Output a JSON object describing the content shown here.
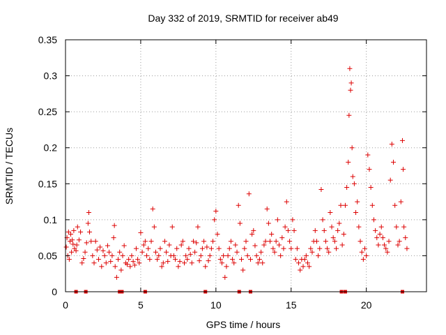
{
  "chart_data": {
    "type": "scatter",
    "title": "Day 332 of 2019, SRMTID for receiver ab49",
    "xlabel": "GPS time / hours",
    "ylabel": "SRMTID / TECUs",
    "xlim": [
      0,
      24
    ],
    "ylim": [
      0,
      0.35
    ],
    "xticks": [
      0,
      5,
      10,
      15,
      20
    ],
    "yticks": [
      0,
      0.05,
      0.1,
      0.15,
      0.2,
      0.25,
      0.3,
      0.35
    ],
    "ytick_labels": [
      "0",
      "0.05",
      "0.1",
      "0.15",
      "0.2",
      "0.25",
      "0.3",
      "0.35"
    ],
    "grid": true,
    "marker": "plus",
    "marker_color": "#dd0000",
    "series": [
      {
        "name": "SRMTID",
        "points": [
          [
            0.05,
            0.062
          ],
          [
            0.1,
            0.075
          ],
          [
            0.15,
            0.05
          ],
          [
            0.2,
            0.083
          ],
          [
            0.25,
            0.045
          ],
          [
            0.3,
            0.07
          ],
          [
            0.35,
            0.08
          ],
          [
            0.4,
            0.055
          ],
          [
            0.45,
            0.072
          ],
          [
            0.5,
            0.066
          ],
          [
            0.55,
            0.085
          ],
          [
            0.6,
            0.06
          ],
          [
            0.7,
            0.057
          ],
          [
            0.75,
            0.065
          ],
          [
            0.8,
            0.09
          ],
          [
            0.9,
            0.072
          ],
          [
            1.0,
            0.083
          ],
          [
            1.1,
            0.04
          ],
          [
            1.2,
            0.046
          ],
          [
            1.3,
            0.055
          ],
          [
            1.4,
            0.068
          ],
          [
            1.5,
            0.095
          ],
          [
            1.55,
            0.11
          ],
          [
            1.6,
            0.083
          ],
          [
            1.7,
            0.07
          ],
          [
            1.8,
            0.05
          ],
          [
            1.9,
            0.04
          ],
          [
            2.0,
            0.07
          ],
          [
            2.1,
            0.058
          ],
          [
            2.2,
            0.045
          ],
          [
            2.3,
            0.062
          ],
          [
            2.4,
            0.035
          ],
          [
            2.5,
            0.057
          ],
          [
            2.6,
            0.05
          ],
          [
            2.7,
            0.04
          ],
          [
            2.8,
            0.064
          ],
          [
            2.9,
            0.055
          ],
          [
            3.0,
            0.042
          ],
          [
            3.1,
            0.05
          ],
          [
            3.2,
            0.075
          ],
          [
            3.25,
            0.092
          ],
          [
            3.3,
            0.035
          ],
          [
            3.4,
            0.02
          ],
          [
            3.5,
            0.045
          ],
          [
            3.6,
            0.055
          ],
          [
            3.7,
            0.03
          ],
          [
            3.8,
            0.05
          ],
          [
            3.9,
            0.064
          ],
          [
            4.0,
            0.04
          ],
          [
            4.1,
            0.038
          ],
          [
            4.2,
            0.045
          ],
          [
            4.3,
            0.035
          ],
          [
            4.4,
            0.05
          ],
          [
            4.5,
            0.042
          ],
          [
            4.6,
            0.037
          ],
          [
            4.7,
            0.06
          ],
          [
            4.8,
            0.045
          ],
          [
            4.9,
            0.04
          ],
          [
            5.0,
            0.082
          ],
          [
            5.1,
            0.055
          ],
          [
            5.2,
            0.065
          ],
          [
            5.3,
            0.07
          ],
          [
            5.4,
            0.05
          ],
          [
            5.5,
            0.06
          ],
          [
            5.6,
            0.045
          ],
          [
            5.7,
            0.07
          ],
          [
            5.8,
            0.115
          ],
          [
            5.9,
            0.09
          ],
          [
            6.0,
            0.055
          ],
          [
            6.1,
            0.045
          ],
          [
            6.2,
            0.05
          ],
          [
            6.3,
            0.06
          ],
          [
            6.4,
            0.035
          ],
          [
            6.5,
            0.04
          ],
          [
            6.6,
            0.07
          ],
          [
            6.7,
            0.055
          ],
          [
            6.8,
            0.042
          ],
          [
            6.9,
            0.065
          ],
          [
            7.0,
            0.05
          ],
          [
            7.1,
            0.09
          ],
          [
            7.2,
            0.05
          ],
          [
            7.3,
            0.045
          ],
          [
            7.4,
            0.06
          ],
          [
            7.5,
            0.035
          ],
          [
            7.6,
            0.042
          ],
          [
            7.7,
            0.065
          ],
          [
            7.8,
            0.07
          ],
          [
            7.9,
            0.04
          ],
          [
            8.0,
            0.05
          ],
          [
            8.1,
            0.045
          ],
          [
            8.2,
            0.06
          ],
          [
            8.3,
            0.052
          ],
          [
            8.4,
            0.04
          ],
          [
            8.5,
            0.07
          ],
          [
            8.6,
            0.055
          ],
          [
            8.7,
            0.068
          ],
          [
            8.8,
            0.09
          ],
          [
            8.9,
            0.043
          ],
          [
            9.0,
            0.05
          ],
          [
            9.1,
            0.06
          ],
          [
            9.2,
            0.07
          ],
          [
            9.3,
            0.035
          ],
          [
            9.4,
            0.062
          ],
          [
            9.5,
            0.043
          ],
          [
            9.6,
            0.05
          ],
          [
            9.7,
            0.06
          ],
          [
            9.8,
            0.07
          ],
          [
            9.9,
            0.1
          ],
          [
            10.0,
            0.112
          ],
          [
            10.1,
            0.08
          ],
          [
            10.2,
            0.06
          ],
          [
            10.3,
            0.045
          ],
          [
            10.4,
            0.04
          ],
          [
            10.5,
            0.05
          ],
          [
            10.6,
            0.02
          ],
          [
            10.7,
            0.035
          ],
          [
            10.8,
            0.05
          ],
          [
            10.9,
            0.06
          ],
          [
            11.0,
            0.07
          ],
          [
            11.1,
            0.045
          ],
          [
            11.2,
            0.04
          ],
          [
            11.3,
            0.065
          ],
          [
            11.4,
            0.055
          ],
          [
            11.5,
            0.12
          ],
          [
            11.6,
            0.095
          ],
          [
            11.7,
            0.045
          ],
          [
            11.8,
            0.03
          ],
          [
            11.9,
            0.06
          ],
          [
            12.0,
            0.07
          ],
          [
            12.1,
            0.05
          ],
          [
            12.2,
            0.136
          ],
          [
            12.3,
            0.045
          ],
          [
            12.4,
            0.08
          ],
          [
            12.5,
            0.085
          ],
          [
            12.6,
            0.064
          ],
          [
            12.7,
            0.05
          ],
          [
            12.8,
            0.04
          ],
          [
            12.9,
            0.045
          ],
          [
            13.0,
            0.055
          ],
          [
            13.1,
            0.04
          ],
          [
            13.2,
            0.065
          ],
          [
            13.3,
            0.07
          ],
          [
            13.4,
            0.115
          ],
          [
            13.5,
            0.095
          ],
          [
            13.6,
            0.07
          ],
          [
            13.7,
            0.08
          ],
          [
            13.8,
            0.06
          ],
          [
            13.9,
            0.055
          ],
          [
            14.0,
            0.07
          ],
          [
            14.1,
            0.1
          ],
          [
            14.2,
            0.065
          ],
          [
            14.3,
            0.05
          ],
          [
            14.4,
            0.075
          ],
          [
            14.5,
            0.06
          ],
          [
            14.6,
            0.09
          ],
          [
            14.7,
            0.125
          ],
          [
            14.8,
            0.085
          ],
          [
            14.9,
            0.07
          ],
          [
            15.0,
            0.06
          ],
          [
            15.1,
            0.1
          ],
          [
            15.2,
            0.085
          ],
          [
            15.3,
            0.045
          ],
          [
            15.4,
            0.06
          ],
          [
            15.5,
            0.04
          ],
          [
            15.6,
            0.03
          ],
          [
            15.7,
            0.045
          ],
          [
            15.8,
            0.035
          ],
          [
            15.9,
            0.045
          ],
          [
            16.0,
            0.05
          ],
          [
            16.1,
            0.04
          ],
          [
            16.2,
            0.035
          ],
          [
            16.3,
            0.06
          ],
          [
            16.4,
            0.055
          ],
          [
            16.5,
            0.07
          ],
          [
            16.6,
            0.085
          ],
          [
            16.7,
            0.07
          ],
          [
            16.8,
            0.05
          ],
          [
            16.9,
            0.06
          ],
          [
            17.0,
            0.142
          ],
          [
            17.1,
            0.1
          ],
          [
            17.2,
            0.085
          ],
          [
            17.3,
            0.07
          ],
          [
            17.4,
            0.06
          ],
          [
            17.5,
            0.055
          ],
          [
            17.6,
            0.11
          ],
          [
            17.7,
            0.09
          ],
          [
            17.8,
            0.075
          ],
          [
            17.9,
            0.07
          ],
          [
            18.0,
            0.06
          ],
          [
            18.1,
            0.085
          ],
          [
            18.2,
            0.095
          ],
          [
            18.3,
            0.12
          ],
          [
            18.4,
            0.065
          ],
          [
            18.5,
            0.08
          ],
          [
            18.6,
            0.12
          ],
          [
            18.7,
            0.145
          ],
          [
            18.8,
            0.18
          ],
          [
            18.85,
            0.245
          ],
          [
            18.9,
            0.31
          ],
          [
            18.95,
            0.28
          ],
          [
            19.0,
            0.29
          ],
          [
            19.05,
            0.2
          ],
          [
            19.1,
            0.16
          ],
          [
            19.2,
            0.15
          ],
          [
            19.3,
            0.11
          ],
          [
            19.4,
            0.125
          ],
          [
            19.5,
            0.09
          ],
          [
            19.6,
            0.07
          ],
          [
            19.7,
            0.055
          ],
          [
            19.8,
            0.045
          ],
          [
            19.9,
            0.06
          ],
          [
            20.0,
            0.05
          ],
          [
            20.1,
            0.19
          ],
          [
            20.2,
            0.17
          ],
          [
            20.3,
            0.145
          ],
          [
            20.4,
            0.12
          ],
          [
            20.5,
            0.1
          ],
          [
            20.6,
            0.085
          ],
          [
            20.7,
            0.075
          ],
          [
            20.8,
            0.065
          ],
          [
            20.9,
            0.08
          ],
          [
            21.0,
            0.09
          ],
          [
            21.1,
            0.075
          ],
          [
            21.2,
            0.065
          ],
          [
            21.3,
            0.06
          ],
          [
            21.4,
            0.055
          ],
          [
            21.5,
            0.07
          ],
          [
            21.6,
            0.155
          ],
          [
            21.7,
            0.205
          ],
          [
            21.8,
            0.18
          ],
          [
            21.9,
            0.12
          ],
          [
            22.0,
            0.09
          ],
          [
            22.1,
            0.065
          ],
          [
            22.2,
            0.07
          ],
          [
            22.3,
            0.125
          ],
          [
            22.4,
            0.21
          ],
          [
            22.45,
            0.17
          ],
          [
            22.5,
            0.09
          ],
          [
            22.6,
            0.075
          ],
          [
            22.7,
            0.06
          ]
        ]
      }
    ],
    "baseline_markers": [
      0.7,
      1.35,
      3.6,
      3.75,
      5.3,
      9.3,
      11.55,
      12.3,
      18.35,
      18.6,
      22.4
    ]
  }
}
